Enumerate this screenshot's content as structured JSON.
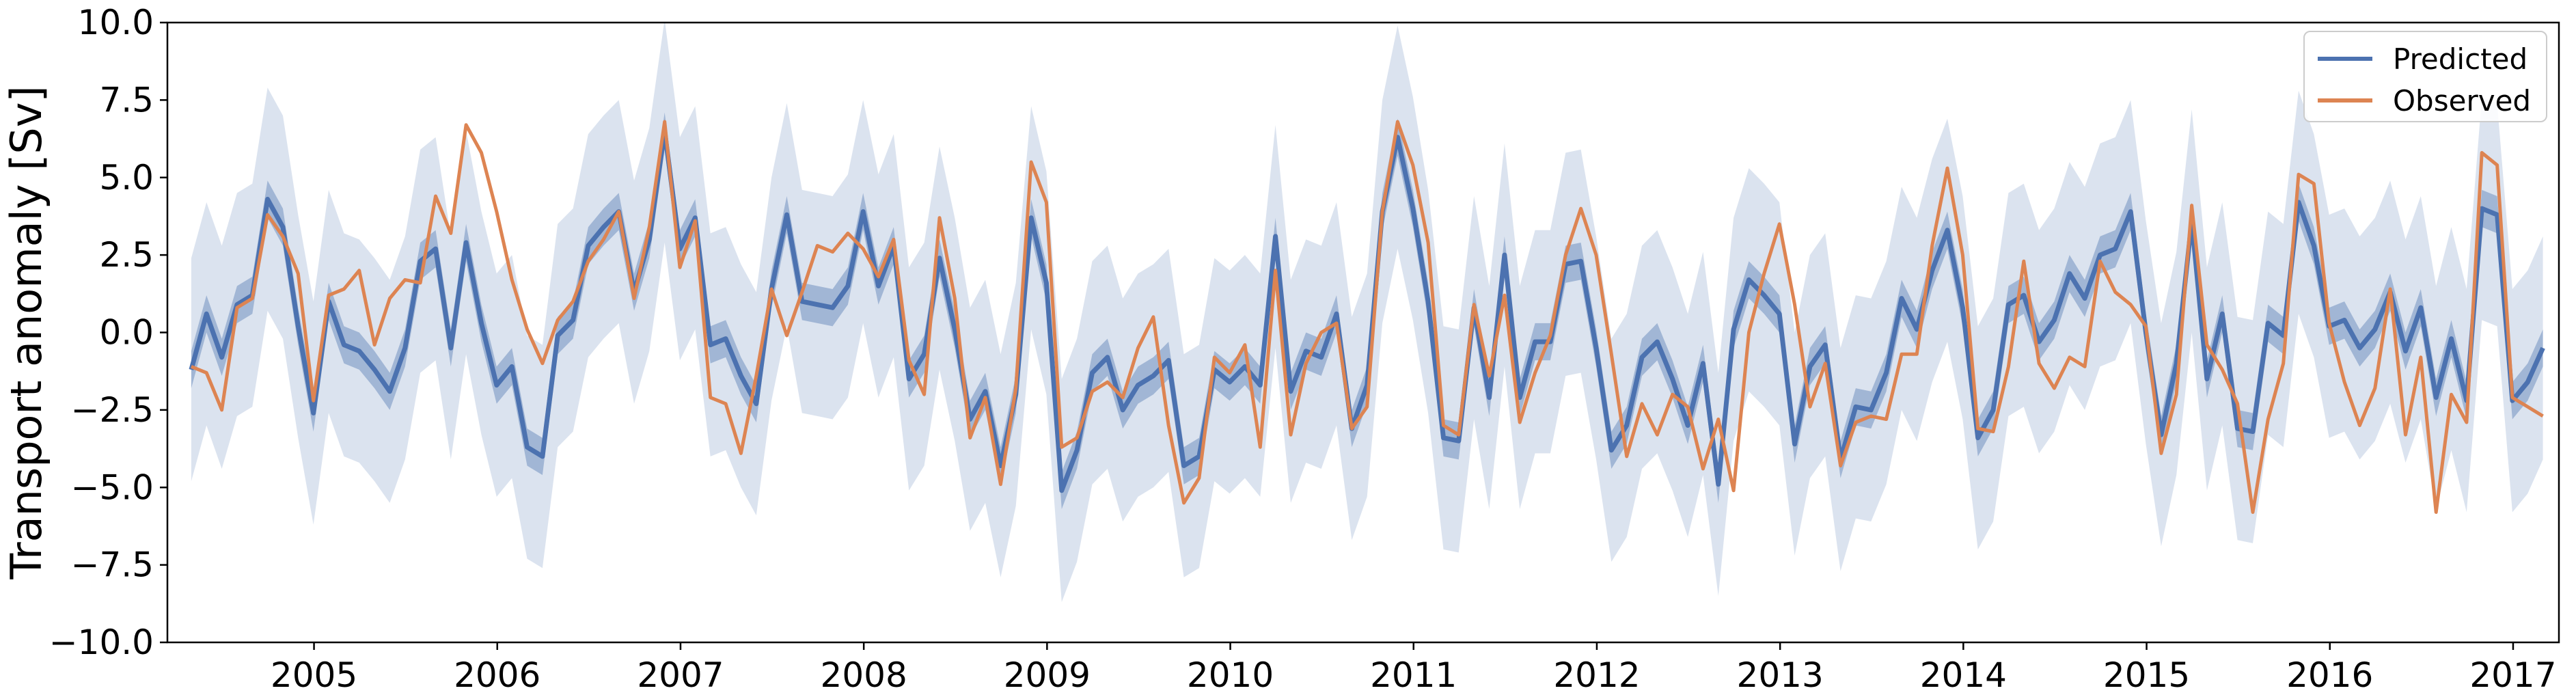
{
  "chart_data": {
    "type": "line",
    "title": "",
    "xlabel": "",
    "ylabel": "Transport anomaly [Sv]",
    "x_unit": "year (monthly samples starting 2004.33)",
    "x_start": 2004.33,
    "x_step": 0.08333,
    "xlim": [
      2004.2,
      2017.25
    ],
    "ylim": [
      -10.0,
      10.0
    ],
    "xticks": [
      2005,
      2006,
      2007,
      2008,
      2009,
      2010,
      2011,
      2012,
      2013,
      2014,
      2015,
      2016,
      2017
    ],
    "xtick_labels": [
      "2005",
      "2006",
      "2007",
      "2008",
      "2009",
      "2010",
      "2011",
      "2012",
      "2013",
      "2014",
      "2015",
      "2016",
      "2017"
    ],
    "yticks": [
      -10.0,
      -7.5,
      -5.0,
      -2.5,
      0.0,
      2.5,
      5.0,
      7.5,
      10.0
    ],
    "ytick_labels": [
      "−10.0",
      "−7.5",
      "−5.0",
      "−2.5",
      "0.0",
      "2.5",
      "5.0",
      "7.5",
      "10.0"
    ],
    "grid": false,
    "legend_position": "top-right",
    "series": [
      {
        "name": "Predicted",
        "color": "#4c72b0",
        "band_inner_halfwidth": 0.6,
        "band_outer_halfwidth": 3.6,
        "values": [
          -1.2,
          0.6,
          -0.8,
          0.9,
          1.2,
          4.3,
          3.4,
          0.2,
          -2.6,
          1.0,
          -0.4,
          -0.6,
          -1.2,
          -1.9,
          -0.5,
          2.3,
          2.7,
          -0.5,
          2.9,
          0.3,
          -1.7,
          -1.1,
          -3.7,
          -4.0,
          -0.1,
          0.4,
          2.8,
          3.4,
          3.9,
          1.3,
          3.0,
          6.5,
          2.7,
          3.7,
          -0.4,
          -0.2,
          -1.4,
          -2.3,
          1.4,
          3.8,
          1.0,
          0.9,
          0.8,
          1.5,
          3.9,
          1.5,
          2.8,
          -1.5,
          -0.7,
          2.4,
          0.1,
          -2.8,
          -1.9,
          -4.3,
          -2.0,
          3.7,
          1.6,
          -5.1,
          -3.8,
          -1.3,
          -0.8,
          -2.5,
          -1.7,
          -1.4,
          -0.9,
          -4.3,
          -4.0,
          -1.2,
          -1.6,
          -1.1,
          -1.7,
          3.1,
          -1.9,
          -0.6,
          -0.8,
          0.6,
          -3.1,
          -1.7,
          3.9,
          6.3,
          4.0,
          1.0,
          -3.4,
          -3.5,
          0.8,
          -2.1,
          2.5,
          -2.1,
          -0.3,
          -0.3,
          2.2,
          2.3,
          -0.5,
          -3.8,
          -3.0,
          -0.8,
          -0.3,
          -1.5,
          -3.0,
          -1.0,
          -4.9,
          0.1,
          1.7,
          1.2,
          0.6,
          -3.6,
          -1.1,
          -0.4,
          -4.1,
          -2.4,
          -2.5,
          -1.3,
          1.1,
          0.1,
          2.0,
          3.3,
          0.8,
          -3.4,
          -2.5,
          0.9,
          1.2,
          -0.3,
          0.4,
          1.9,
          1.1,
          2.5,
          2.7,
          3.9,
          0.0,
          -3.3,
          -1.0,
          3.6,
          -1.5,
          0.6,
          -3.1,
          -3.2,
          0.3,
          -0.1,
          4.2,
          2.8,
          0.2,
          0.4,
          -0.5,
          0.1,
          1.3,
          -0.6,
          0.8,
          -2.1,
          -0.2,
          -2.2,
          4.0,
          3.8,
          -2.2,
          -1.6,
          -0.5
        ]
      },
      {
        "name": "Observed",
        "color": "#dd8452",
        "values": [
          -1.1,
          -1.3,
          -2.5,
          0.8,
          1.1,
          3.8,
          3.1,
          1.9,
          -2.2,
          1.2,
          1.4,
          2.0,
          -0.4,
          1.1,
          1.7,
          1.6,
          4.4,
          3.2,
          6.7,
          5.8,
          3.9,
          1.7,
          0.1,
          -1.0,
          0.4,
          1.0,
          2.3,
          3.0,
          3.9,
          1.1,
          3.4,
          6.8,
          2.1,
          3.6,
          -2.1,
          -2.3,
          -3.9,
          -1.4,
          1.4,
          -0.1,
          1.3,
          2.8,
          2.6,
          3.2,
          2.7,
          1.8,
          3.0,
          -0.9,
          -2.0,
          3.7,
          1.1,
          -3.4,
          -2.1,
          -4.9,
          -1.8,
          5.5,
          4.2,
          -3.7,
          -3.4,
          -1.9,
          -1.6,
          -2.1,
          -0.5,
          0.5,
          -3.0,
          -5.5,
          -4.7,
          -0.8,
          -1.3,
          -0.4,
          -3.7,
          2.0,
          -3.3,
          -1.0,
          0.0,
          0.3,
          -3.1,
          -2.4,
          3.9,
          6.8,
          5.4,
          2.9,
          -3.0,
          -3.3,
          0.9,
          -1.4,
          1.2,
          -2.9,
          -1.3,
          -0.1,
          2.5,
          4.0,
          2.5,
          -0.7,
          -4.0,
          -2.3,
          -3.3,
          -2.0,
          -2.4,
          -4.4,
          -2.8,
          -5.1,
          0.0,
          1.9,
          3.5,
          0.9,
          -2.4,
          -1.0,
          -4.3,
          -2.9,
          -2.7,
          -2.8,
          -0.7,
          -0.7,
          2.8,
          5.3,
          2.5,
          -3.1,
          -3.2,
          -1.1,
          2.3,
          -1.0,
          -1.8,
          -0.8,
          -1.1,
          2.3,
          1.3,
          0.9,
          0.2,
          -3.9,
          -2.0,
          4.1,
          -0.4,
          -1.2,
          -2.3,
          -5.8,
          -2.8,
          -1.0,
          5.1,
          4.8,
          0.3,
          -1.6,
          -3.0,
          -1.8,
          1.4,
          -3.3,
          -0.8,
          -5.8,
          -2.0,
          -2.9,
          5.8,
          5.4,
          -2.1,
          -2.4,
          -2.7
        ]
      }
    ]
  }
}
